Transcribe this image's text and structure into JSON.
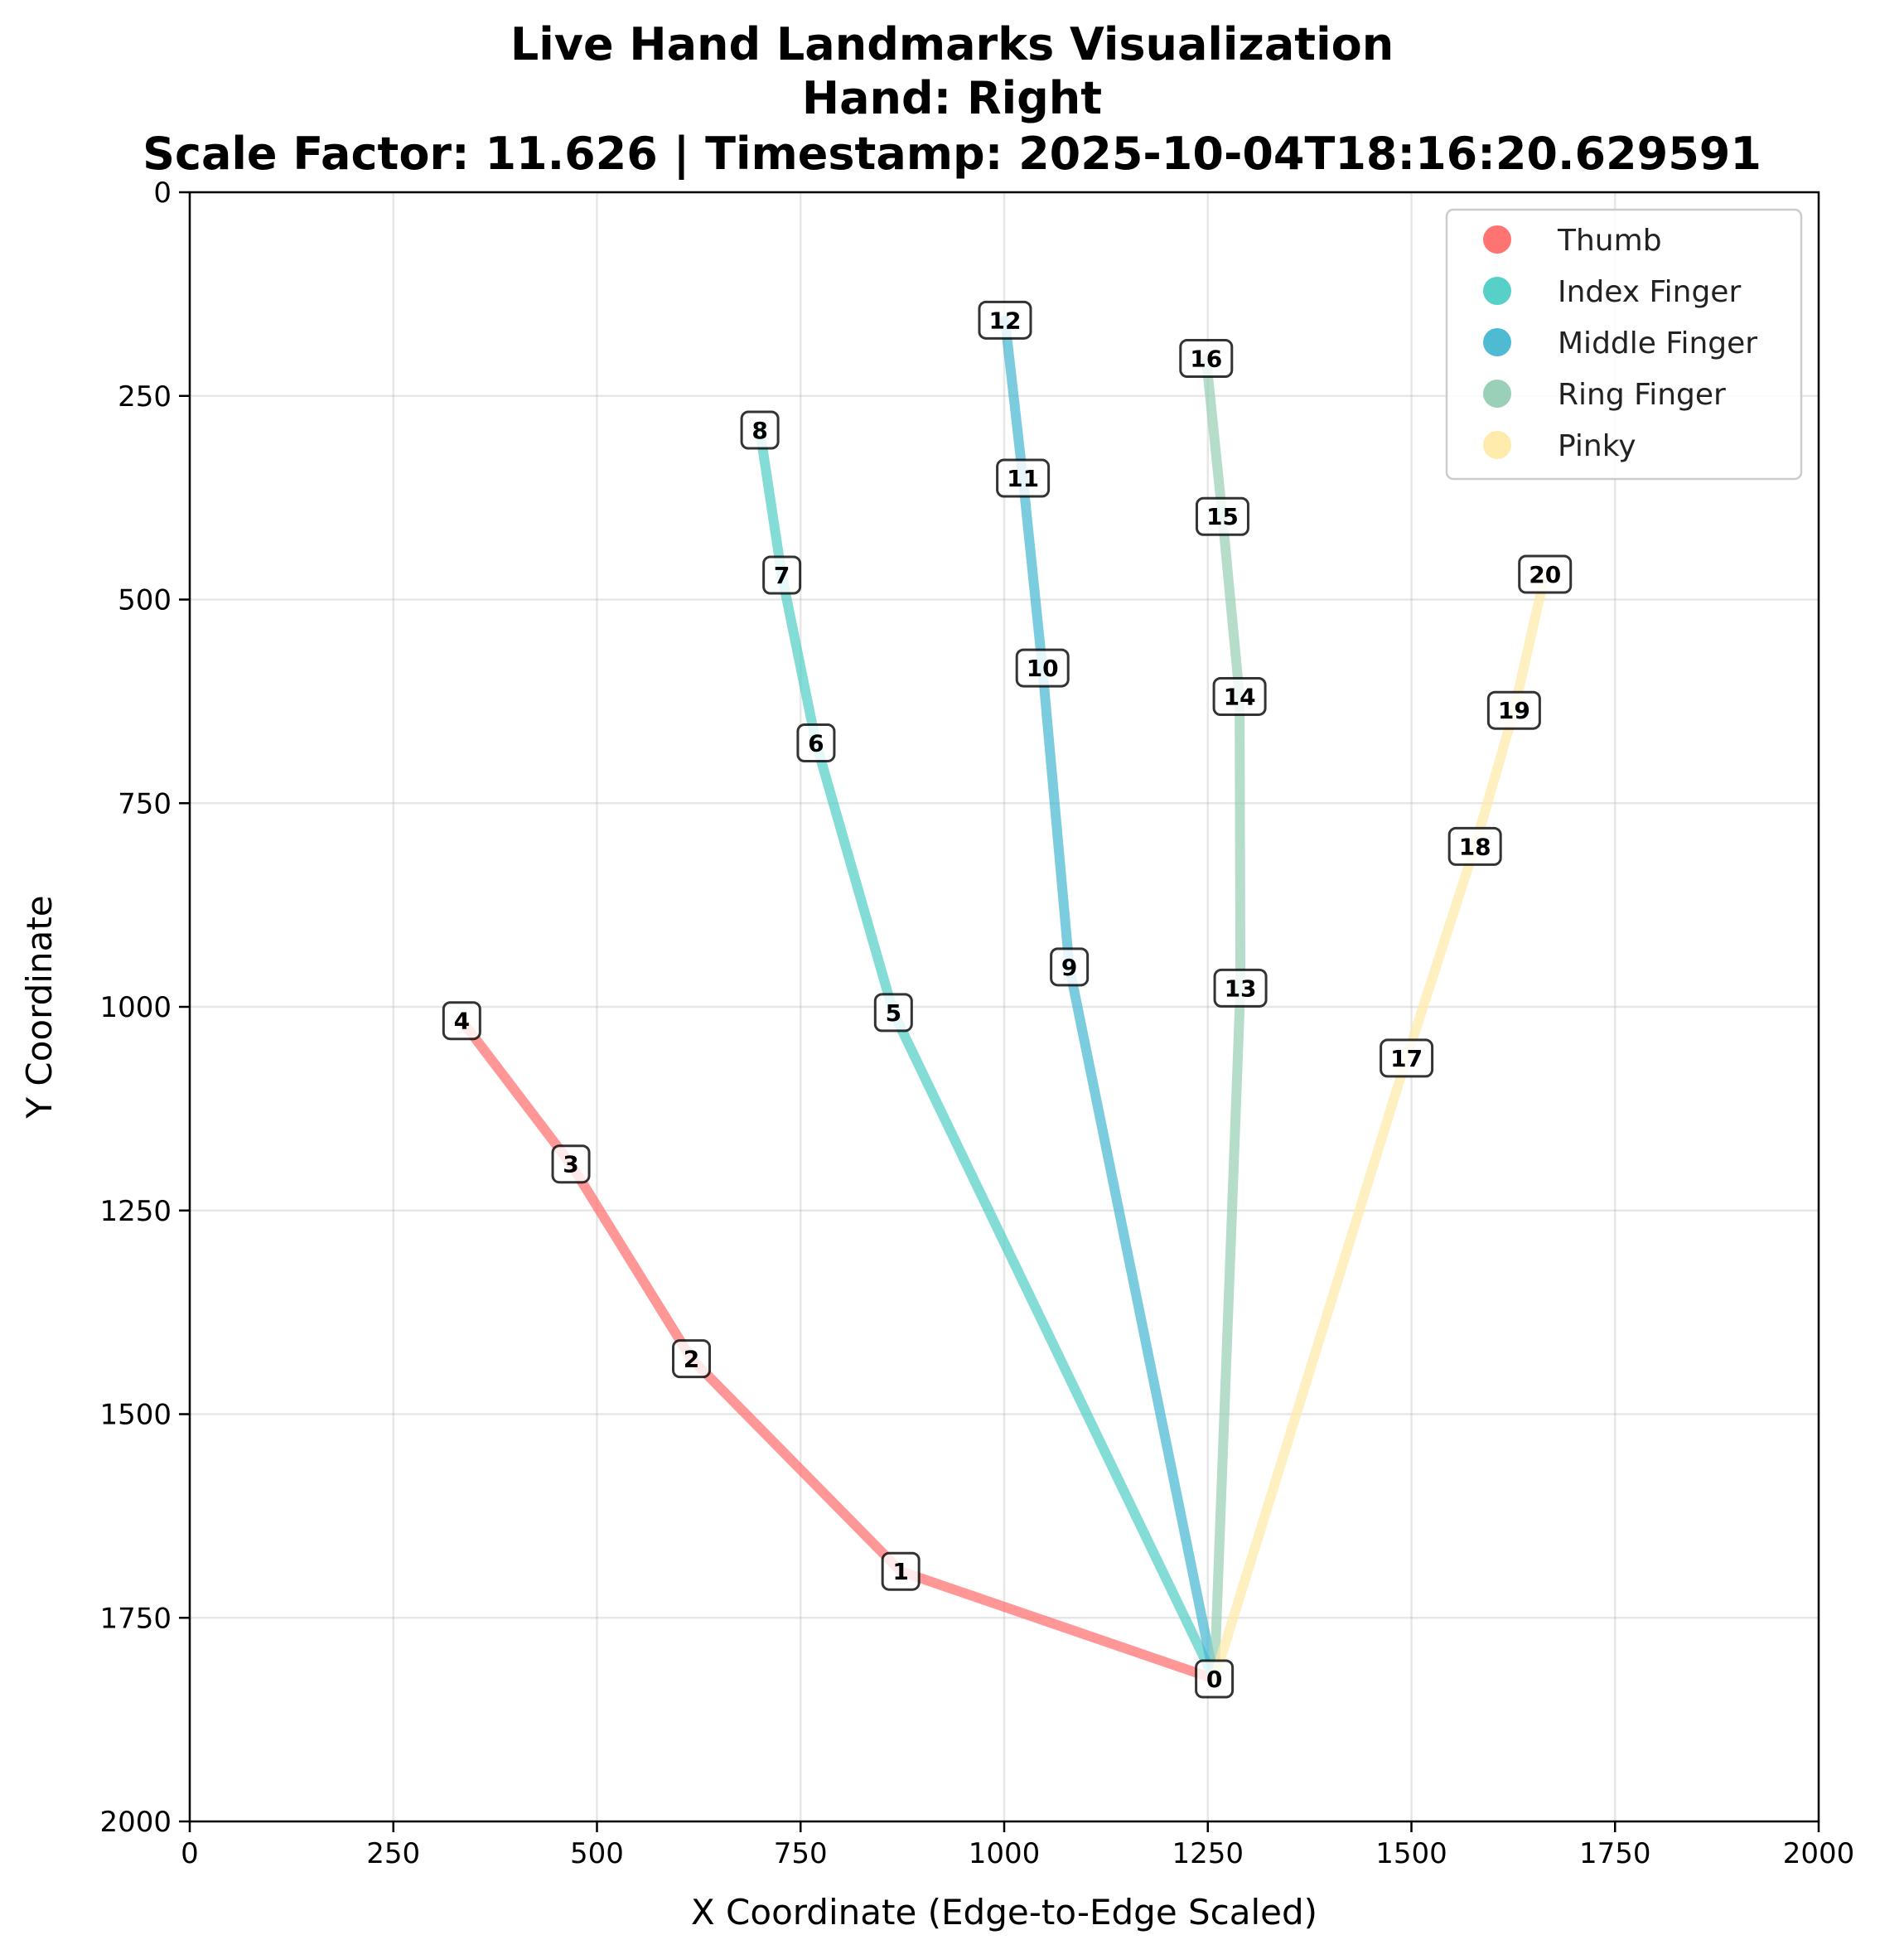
{
  "chart_data": {
    "type": "line",
    "title_lines": [
      "Live Hand Landmarks Visualization",
      "Hand: Right",
      "Scale Factor: 11.626 | Timestamp: 2025-10-04T18:16:20.629591"
    ],
    "xlabel": "X Coordinate (Edge-to-Edge Scaled)",
    "ylabel": "Y Coordinate",
    "xlim": [
      0,
      2000
    ],
    "ylim": [
      2000,
      0
    ],
    "y_inverted": true,
    "xticks": [
      "0",
      "250",
      "500",
      "750",
      "1000",
      "1250",
      "1500",
      "1750",
      "2000"
    ],
    "yticks": [
      "0",
      "250",
      "500",
      "750",
      "1000",
      "1250",
      "1500",
      "1750",
      "2000"
    ],
    "grid": true,
    "legend_position": "upper-right",
    "series": [
      {
        "name": "Thumb",
        "color": "#ff6b6b",
        "landmarks": [
          0,
          1,
          2,
          3,
          4
        ]
      },
      {
        "name": "Index Finger",
        "color": "#4ecdc4",
        "landmarks": [
          0,
          5,
          6,
          7,
          8
        ]
      },
      {
        "name": "Middle Finger",
        "color": "#45b7d1",
        "landmarks": [
          0,
          9,
          10,
          11,
          12
        ]
      },
      {
        "name": "Ring Finger",
        "color": "#96ceb4",
        "landmarks": [
          0,
          13,
          14,
          15,
          16
        ]
      },
      {
        "name": "Pinky",
        "color": "#ffeaa7",
        "landmarks": [
          0,
          17,
          18,
          19,
          20
        ]
      }
    ],
    "points": [
      {
        "label": "0",
        "x": 1258,
        "y": 1825
      },
      {
        "label": "1",
        "x": 873,
        "y": 1693
      },
      {
        "label": "2",
        "x": 616,
        "y": 1432
      },
      {
        "label": "3",
        "x": 468,
        "y": 1193
      },
      {
        "label": "4",
        "x": 334,
        "y": 1017
      },
      {
        "label": "5",
        "x": 864,
        "y": 1007
      },
      {
        "label": "6",
        "x": 769,
        "y": 676
      },
      {
        "label": "7",
        "x": 727,
        "y": 470
      },
      {
        "label": "8",
        "x": 700,
        "y": 292
      },
      {
        "label": "9",
        "x": 1080,
        "y": 951
      },
      {
        "label": "10",
        "x": 1047,
        "y": 584
      },
      {
        "label": "11",
        "x": 1023,
        "y": 351
      },
      {
        "label": "12",
        "x": 1001,
        "y": 157
      },
      {
        "label": "13",
        "x": 1290,
        "y": 977
      },
      {
        "label": "14",
        "x": 1289,
        "y": 619
      },
      {
        "label": "15",
        "x": 1268,
        "y": 398
      },
      {
        "label": "16",
        "x": 1248,
        "y": 204
      },
      {
        "label": "17",
        "x": 1494,
        "y": 1063
      },
      {
        "label": "18",
        "x": 1578,
        "y": 803
      },
      {
        "label": "19",
        "x": 1626,
        "y": 636
      },
      {
        "label": "20",
        "x": 1664,
        "y": 469
      }
    ]
  }
}
